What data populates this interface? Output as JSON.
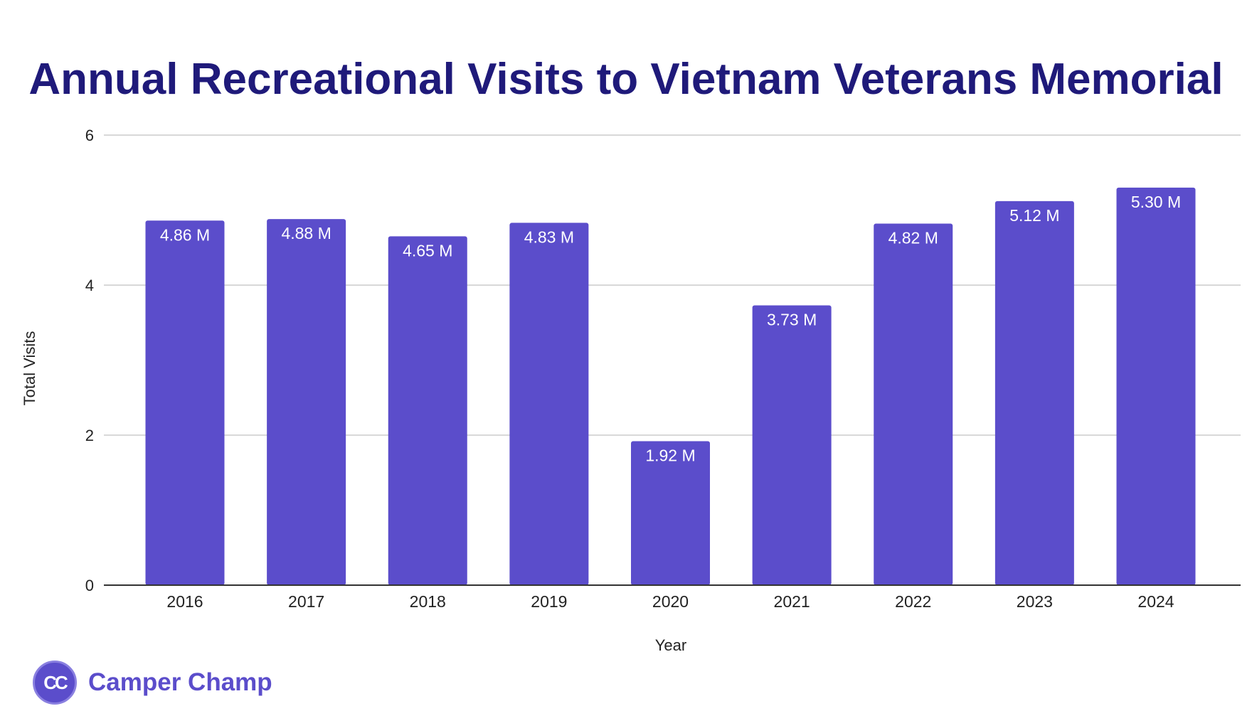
{
  "chart_data": {
    "type": "bar",
    "title": "Annual Recreational Visits to Vietnam Veterans Memorial",
    "xlabel": "Year",
    "ylabel": "Total Visits",
    "categories": [
      "2016",
      "2017",
      "2018",
      "2019",
      "2020",
      "2021",
      "2022",
      "2023",
      "2024"
    ],
    "values": [
      4.86,
      4.88,
      4.65,
      4.83,
      1.92,
      3.73,
      4.82,
      5.12,
      5.3
    ],
    "data_labels": [
      "4.86 M",
      "4.88 M",
      "4.65 M",
      "4.83 M",
      "1.92 M",
      "3.73 M",
      "4.82 M",
      "5.12 M",
      "5.30 M"
    ],
    "ylim": [
      0,
      6
    ],
    "yticks": [
      "0",
      "2",
      "4",
      "6"
    ],
    "grid": true,
    "bar_color": "#5b4dcb",
    "legend": "none"
  },
  "branding": {
    "logo_text": "CC",
    "name": "Camper Champ",
    "color": "#5b4dcb"
  }
}
